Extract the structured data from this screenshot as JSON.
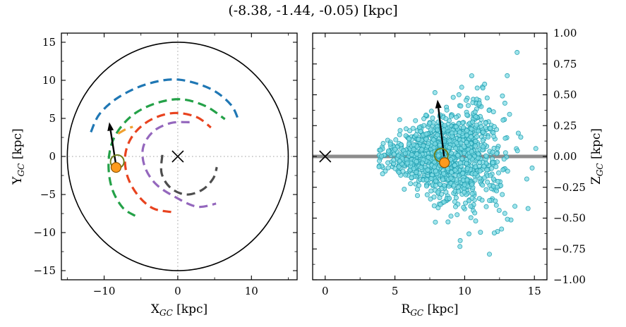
{
  "title": "(-8.38, -1.44, -0.05) [kpc]",
  "style": {
    "sun_fill": "#ff9a1e",
    "sun_edge": "#8a5200",
    "ring_edge": "#6e7f1c",
    "x_marker": "#000000",
    "arrow": "#000000",
    "crosshair": "#9e9e9e",
    "frame": "#000000"
  },
  "chart_data": [
    {
      "type": "line",
      "id": "xy-panel",
      "description": "Face-on galactocentric map with spiral arms, solar circle, galactic center cross and object position",
      "xlabel": {
        "variable": "X",
        "subscript": "GC",
        "unit": " [kpc]"
      },
      "ylabel": {
        "variable": "Y",
        "subscript": "GC",
        "unit": " [kpc]"
      },
      "xlim": [
        -15.8,
        16.2
      ],
      "ylim": [
        -16.2,
        16.2
      ],
      "grid": false,
      "xticks": {
        "major": [
          {
            "v": -10,
            "label": "−10"
          },
          {
            "v": 0,
            "label": "0"
          },
          {
            "v": 10,
            "label": "10"
          }
        ],
        "minor": [
          -15,
          -5,
          5,
          15
        ]
      },
      "yticks": {
        "major": [
          {
            "v": 15,
            "label": "15"
          },
          {
            "v": 10,
            "label": "10"
          },
          {
            "v": 5,
            "label": "5"
          },
          {
            "v": 0,
            "label": "0"
          },
          {
            "v": -5,
            "label": "−5"
          },
          {
            "v": -10,
            "label": "−10"
          },
          {
            "v": -15,
            "label": "−15"
          }
        ],
        "minor": [
          -12.5,
          -7.5,
          -2.5,
          2.5,
          7.5,
          12.5
        ]
      },
      "crosshair": {
        "x": 0,
        "y": 0
      },
      "solar_circle": {
        "cx": 0,
        "cy": 0,
        "r": 15
      },
      "galactic_center_marker": {
        "x": 0,
        "y": 0
      },
      "sun_marker": {
        "x": -8.38,
        "y": -1.44
      },
      "cluster_ring_marker": {
        "x": -8.22,
        "y": -0.68
      },
      "motion_arrow": {
        "x1": -8.38,
        "y1": -1.2,
        "x2": -9.3,
        "y2": 4.5
      },
      "spiral_arms": [
        {
          "id": "arm-blue",
          "color": "#1f77b4",
          "points": [
            [
              -11.8,
              3.2
            ],
            [
              -10.6,
              5.6
            ],
            [
              -8.0,
              7.8
            ],
            [
              -4.2,
              9.5
            ],
            [
              0,
              10.1
            ],
            [
              4.4,
              8.9
            ],
            [
              7.2,
              6.8
            ],
            [
              8.3,
              4.6
            ]
          ]
        },
        {
          "id": "arm-green",
          "color": "#24a148",
          "points": [
            [
              -5.8,
              -7.8
            ],
            [
              -7.5,
              -6.7
            ],
            [
              -8.9,
              -4.3
            ],
            [
              -9.4,
              -1.3
            ],
            [
              -9.0,
              1.6
            ],
            [
              -7.7,
              3.9
            ],
            [
              -5.6,
              5.8
            ],
            [
              -2.6,
              7.1
            ],
            [
              0.6,
              7.5
            ],
            [
              3.8,
              6.6
            ],
            [
              6.4,
              4.9
            ]
          ]
        },
        {
          "id": "arm-red",
          "color": "#e8431f",
          "points": [
            [
              -0.9,
              -7.3
            ],
            [
              -3.4,
              -6.8
            ],
            [
              -5.5,
              -5.0
            ],
            [
              -6.9,
              -2.4
            ],
            [
              -7.1,
              0.4
            ],
            [
              -6.0,
              2.9
            ],
            [
              -3.7,
              4.8
            ],
            [
              -0.6,
              5.7
            ],
            [
              2.5,
              5.2
            ],
            [
              4.5,
              3.8
            ]
          ]
        },
        {
          "id": "arm-purple",
          "color": "#9467bd",
          "points": [
            [
              1.6,
              4.5
            ],
            [
              -0.9,
              4.4
            ],
            [
              -3.3,
              3.3
            ],
            [
              -4.7,
              1.2
            ],
            [
              -4.5,
              -1.3
            ],
            [
              -3.0,
              -3.6
            ],
            [
              -0.4,
              -5.3
            ],
            [
              2.6,
              -6.6
            ],
            [
              5.2,
              -6.2
            ]
          ]
        },
        {
          "id": "arm-gray",
          "color": "#4d4d4d",
          "points": [
            [
              -2.1,
              0.2
            ],
            [
              -2.2,
              -2.2
            ],
            [
              -1.0,
              -4.1
            ],
            [
              1.1,
              -5.0
            ],
            [
              3.3,
              -4.4
            ],
            [
              4.8,
              -2.9
            ],
            [
              5.3,
              -1.4
            ]
          ]
        },
        {
          "id": "arm-orange",
          "color": "#f0a030",
          "points": [
            [
              -8.1,
              3.0
            ],
            [
              -7.0,
              3.6
            ],
            [
              -6.1,
              3.9
            ]
          ]
        }
      ]
    },
    {
      "type": "scatter",
      "id": "rz-panel",
      "description": "Edge-on galactocentric R-Z distribution of simulated stars with galactic plane line and object position",
      "xlabel": {
        "variable": "R",
        "subscript": "GC",
        "unit": " [kpc]"
      },
      "ylabel": {
        "variable": "Z",
        "subscript": "GC",
        "unit": " [kpc]"
      },
      "xlim": [
        -0.9,
        15.9
      ],
      "ylim": [
        -1.0,
        1.0
      ],
      "xticks": {
        "major": [
          {
            "v": 0,
            "label": "0"
          },
          {
            "v": 5,
            "label": "5"
          },
          {
            "v": 10,
            "label": "10"
          },
          {
            "v": 15,
            "label": "15"
          }
        ],
        "minor": [
          2.5,
          7.5,
          12.5
        ]
      },
      "yticks": {
        "major": [
          {
            "v": 1.0,
            "label": "1.00"
          },
          {
            "v": 0.75,
            "label": "0.75"
          },
          {
            "v": 0.5,
            "label": "0.50"
          },
          {
            "v": 0.25,
            "label": "0.25"
          },
          {
            "v": 0,
            "label": "0.00"
          },
          {
            "v": -0.25,
            "label": "−0.25"
          },
          {
            "v": -0.5,
            "label": "−0.50"
          },
          {
            "v": -0.75,
            "label": "−0.75"
          },
          {
            "v": -1.0,
            "label": "−1.00"
          }
        ],
        "minor": [
          0.875,
          0.625,
          0.375,
          0.125,
          -0.125,
          -0.375,
          -0.625,
          -0.875
        ]
      },
      "plane_line": {
        "y": 0,
        "color": "#8c8c8c",
        "width": 5
      },
      "galactic_center_marker": {
        "x": 0,
        "y": 0
      },
      "sun_marker": {
        "x": 8.55,
        "y": -0.05
      },
      "cluster_ring_marker": {
        "x": 8.32,
        "y": 0.01
      },
      "motion_arrow": {
        "x1": 8.52,
        "y1": 0.0,
        "x2": 8.05,
        "y2": 0.46
      },
      "scatter_cloud": {
        "n": 1200,
        "seed": 20,
        "r_mean": 8.7,
        "r_sigma": 2.0,
        "r_min": 3.8,
        "r_max": 15.6,
        "z_sigma_base": 0.05,
        "z_flare_per_kpc": 0.028,
        "z_max": 1.0,
        "marker_px": 3.1,
        "fill": "#7fdbe4",
        "edge": "#1f9fb0",
        "opacity": 0.75
      }
    }
  ]
}
